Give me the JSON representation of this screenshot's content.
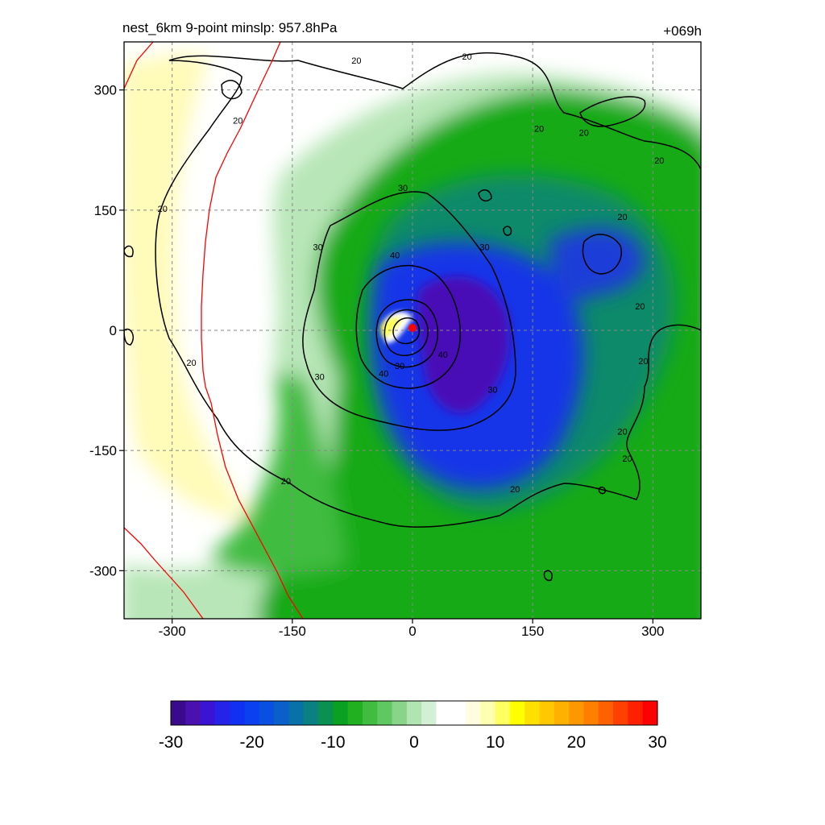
{
  "title_left": "nest_6km  9-point minslp: 957.8hPa",
  "title_right": "+069h",
  "chart_data": {
    "type": "heatmap",
    "xlim": [
      -360,
      360
    ],
    "ylim": [
      -360,
      360
    ],
    "xticks": [
      -300,
      -150,
      0,
      150,
      300
    ],
    "yticks": [
      300,
      150,
      0,
      -150,
      -300
    ],
    "grid": true,
    "colorbar": {
      "vmin": -30,
      "vmax": 30,
      "ticks": [
        -30,
        -20,
        -10,
        0,
        10,
        20,
        30
      ],
      "colors": [
        "#3a0a8c",
        "#4a10b0",
        "#3a14d4",
        "#2424e8",
        "#1230f2",
        "#0a40f0",
        "#0a50e0",
        "#0a60c8",
        "#0a70a8",
        "#0a8080",
        "#0a9050",
        "#0aa020",
        "#20b020",
        "#40bc40",
        "#60c860",
        "#88d488",
        "#b0e4b0",
        "#d4f0d4",
        "#ffffff",
        "#ffffff",
        "#fffce0",
        "#ffffb0",
        "#ffff60",
        "#ffff00",
        "#ffe000",
        "#ffc800",
        "#ffb000",
        "#ff9800",
        "#ff8000",
        "#ff6000",
        "#ff4000",
        "#ff2000",
        "#ff0000"
      ]
    },
    "contour_labels": [
      {
        "text": "20",
        "x": -70,
        "y": 337
      },
      {
        "text": "20",
        "x": 68,
        "y": 342
      },
      {
        "text": "20",
        "x": -218,
        "y": 262
      },
      {
        "text": "20",
        "x": 158,
        "y": 252
      },
      {
        "text": "20",
        "x": 214,
        "y": 247
      },
      {
        "text": "20",
        "x": 308,
        "y": 212
      },
      {
        "text": "20",
        "x": 262,
        "y": 142
      },
      {
        "text": "20",
        "x": -312,
        "y": 152
      },
      {
        "text": "20",
        "x": 284,
        "y": 30
      },
      {
        "text": "20",
        "x": 288,
        "y": -38
      },
      {
        "text": "20",
        "x": 262,
        "y": -126
      },
      {
        "text": "20",
        "x": 268,
        "y": -160
      },
      {
        "text": "20",
        "x": -276,
        "y": -40
      },
      {
        "text": "20",
        "x": -158,
        "y": -188
      },
      {
        "text": "20",
        "x": 128,
        "y": -198
      },
      {
        "text": "30",
        "x": -12,
        "y": 178
      },
      {
        "text": "30",
        "x": 90,
        "y": 104
      },
      {
        "text": "30",
        "x": -118,
        "y": 104
      },
      {
        "text": "30",
        "x": -116,
        "y": -58
      },
      {
        "text": "30",
        "x": 100,
        "y": -74
      },
      {
        "text": "30",
        "x": -16,
        "y": -44
      },
      {
        "text": "40",
        "x": -22,
        "y": 94
      },
      {
        "text": "40",
        "x": 38,
        "y": -30
      },
      {
        "text": "40",
        "x": -36,
        "y": -54
      }
    ],
    "center_marker": {
      "x": 0,
      "y": 3
    }
  }
}
